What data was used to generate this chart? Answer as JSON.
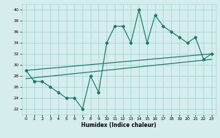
{
  "xlabel": "Humidex (Indice chaleur)",
  "background_color": "#d5eeed",
  "grid_color": "#a8d5d0",
  "line_color": "#1a7a6e",
  "xlim": [
    -0.5,
    23.5
  ],
  "ylim": [
    21,
    41
  ],
  "yticks": [
    22,
    24,
    26,
    28,
    30,
    32,
    34,
    36,
    38,
    40
  ],
  "xticks": [
    0,
    1,
    2,
    3,
    4,
    5,
    6,
    7,
    8,
    9,
    10,
    11,
    12,
    13,
    14,
    15,
    16,
    17,
    18,
    19,
    20,
    21,
    22,
    23
  ],
  "line1_x": [
    0,
    1,
    2,
    3,
    4,
    5,
    6,
    7,
    8,
    9,
    10,
    11,
    12,
    13,
    14,
    15,
    16,
    17,
    18,
    19,
    20,
    21,
    22,
    23
  ],
  "line1_y": [
    29,
    27,
    27,
    26,
    25,
    24,
    24,
    22,
    28,
    25,
    34,
    37,
    37,
    34,
    40,
    34,
    39,
    37,
    36,
    35,
    34,
    35,
    31,
    32
  ],
  "trend1_x": [
    0,
    23
  ],
  "trend1_y": [
    29.0,
    32.0
  ],
  "trend2_x": [
    0,
    23
  ],
  "trend2_y": [
    27.5,
    31.0
  ]
}
